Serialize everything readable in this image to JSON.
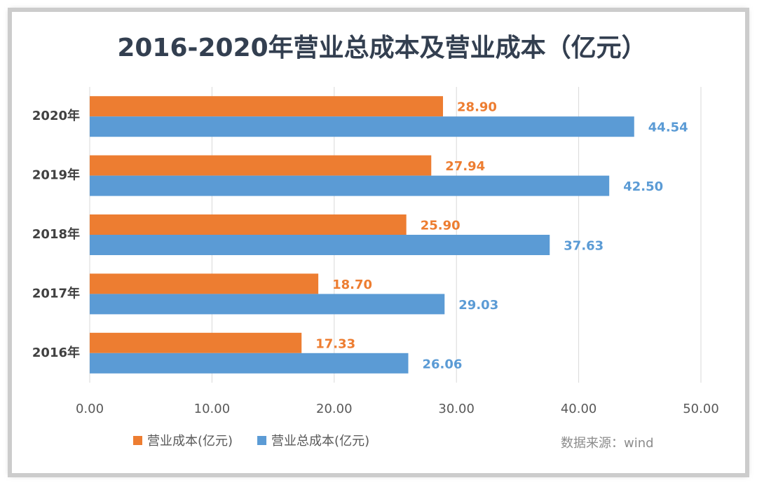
{
  "chart_data": {
    "type": "hbar",
    "title": "2016-2020年营业总成本及营业成本（亿元）",
    "categories": [
      "2020年",
      "2019年",
      "2018年",
      "2017年",
      "2016年"
    ],
    "series": [
      {
        "name": "营业成本(亿元)",
        "color": "#ed7d31",
        "values": [
          28.9,
          27.94,
          25.9,
          18.7,
          17.33
        ],
        "value_labels": [
          "28.90",
          "27.94",
          "25.90",
          "18.70",
          "17.33"
        ]
      },
      {
        "name": "营业总成本(亿元)",
        "color": "#5b9bd5",
        "values": [
          44.54,
          42.5,
          37.63,
          29.03,
          26.06
        ],
        "value_labels": [
          "44.54",
          "42.50",
          "37.63",
          "29.03",
          "26.06"
        ]
      }
    ],
    "xlim": [
      0,
      50
    ],
    "xticks": [
      {
        "value": 0,
        "label": "0.00"
      },
      {
        "value": 10,
        "label": "10.00"
      },
      {
        "value": 20,
        "label": "20.00"
      },
      {
        "value": 30,
        "label": "30.00"
      },
      {
        "value": 40,
        "label": "40.00"
      },
      {
        "value": 50,
        "label": "50.00"
      }
    ],
    "grid": true,
    "legend": "bottom",
    "source": "数据来源：wind"
  }
}
